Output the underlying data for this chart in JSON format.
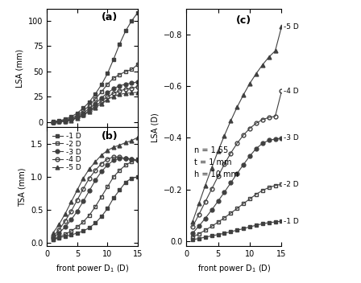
{
  "x": [
    1,
    2,
    3,
    4,
    5,
    6,
    7,
    8,
    9,
    10,
    11,
    12,
    13,
    14,
    15
  ],
  "lsa_mm": {
    "-1D": [
      0.5,
      1.5,
      3.0,
      5.5,
      9.0,
      14.0,
      20.0,
      28.0,
      37.0,
      48.0,
      62.0,
      77.0,
      90.0,
      100.0,
      108.0
    ],
    "-2D": [
      0.3,
      1.0,
      2.2,
      4.0,
      7.0,
      11.0,
      16.5,
      23.0,
      30.0,
      37.5,
      43.5,
      47.0,
      50.0,
      52.0,
      57.0
    ],
    "-3D": [
      0.2,
      0.7,
      1.6,
      3.0,
      5.5,
      9.0,
      13.5,
      18.5,
      24.0,
      29.0,
      33.0,
      36.0,
      37.5,
      38.5,
      40.0
    ],
    "-4D": [
      0.2,
      0.5,
      1.2,
      2.5,
      4.5,
      7.5,
      11.5,
      16.0,
      20.5,
      25.0,
      28.5,
      31.0,
      32.5,
      33.5,
      35.0
    ],
    "-5D": [
      0.2,
      0.5,
      1.0,
      2.0,
      4.0,
      7.0,
      10.5,
      14.5,
      18.5,
      22.5,
      25.5,
      27.5,
      28.5,
      29.0,
      29.5
    ]
  },
  "tsa_mm": {
    "-1D": [
      0.05,
      0.08,
      0.1,
      0.12,
      0.15,
      0.18,
      0.23,
      0.3,
      0.4,
      0.52,
      0.68,
      0.8,
      0.92,
      0.98,
      1.0
    ],
    "-2D": [
      0.05,
      0.09,
      0.13,
      0.18,
      0.24,
      0.32,
      0.42,
      0.55,
      0.7,
      0.85,
      1.0,
      1.1,
      1.18,
      1.23,
      1.27
    ],
    "-3D": [
      0.08,
      0.15,
      0.24,
      0.35,
      0.48,
      0.63,
      0.79,
      0.95,
      1.08,
      1.18,
      1.25,
      1.28,
      1.28,
      1.27,
      1.25
    ],
    "-4D": [
      0.1,
      0.2,
      0.33,
      0.48,
      0.65,
      0.82,
      0.98,
      1.1,
      1.2,
      1.27,
      1.3,
      1.3,
      1.28,
      1.27,
      1.25
    ],
    "-5D": [
      0.15,
      0.28,
      0.44,
      0.62,
      0.8,
      0.98,
      1.12,
      1.23,
      1.33,
      1.4,
      1.45,
      1.48,
      1.52,
      1.55,
      1.6
    ]
  },
  "lsa_d": {
    "-1D": [
      -0.005,
      -0.01,
      -0.015,
      -0.02,
      -0.025,
      -0.03,
      -0.036,
      -0.042,
      -0.048,
      -0.055,
      -0.061,
      -0.067,
      -0.071,
      -0.074,
      -0.077
    ],
    "-2D": [
      -0.015,
      -0.028,
      -0.042,
      -0.057,
      -0.073,
      -0.09,
      -0.108,
      -0.126,
      -0.145,
      -0.163,
      -0.181,
      -0.196,
      -0.207,
      -0.215,
      -0.22
    ],
    "-3D": [
      -0.03,
      -0.058,
      -0.088,
      -0.12,
      -0.154,
      -0.189,
      -0.225,
      -0.261,
      -0.296,
      -0.329,
      -0.358,
      -0.378,
      -0.39,
      -0.395,
      -0.398
    ],
    "-4D": [
      -0.055,
      -0.103,
      -0.152,
      -0.201,
      -0.25,
      -0.297,
      -0.34,
      -0.378,
      -0.41,
      -0.436,
      -0.456,
      -0.47,
      -0.478,
      -0.483,
      -0.58
    ],
    "-5D": [
      -0.075,
      -0.145,
      -0.215,
      -0.283,
      -0.348,
      -0.408,
      -0.465,
      -0.518,
      -0.566,
      -0.61,
      -0.648,
      -0.682,
      -0.712,
      -0.736,
      -0.83
    ]
  },
  "annotation": "n = 1.55\nt = 1 mm\nh = 10 mm",
  "labels": [
    "-1 D",
    "-2 D",
    "-3 D",
    "-4 D",
    "-5 D"
  ],
  "figsize": [
    4.48,
    3.52
  ],
  "dpi": 100
}
